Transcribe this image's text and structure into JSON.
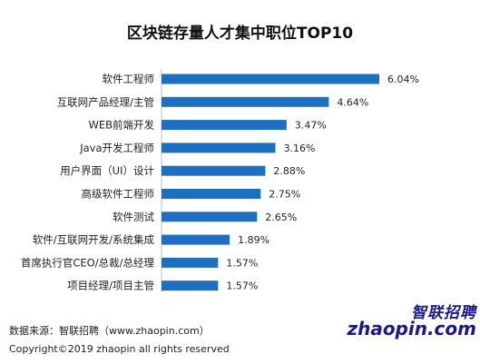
{
  "chart_data": {
    "type": "bar",
    "orientation": "horizontal",
    "title": "区块链存量人才集中职位TOP10",
    "categories": [
      "软件工程师",
      "互联网产品经理/主管",
      "WEB前端开发",
      "Java开发工程师",
      "用户界面（UI）设计",
      "高级软件工程师",
      "软件测试",
      "软件/互联网开发/系统集成",
      "首席执行官CEO/总裁/总经理",
      "项目经理/项目主管"
    ],
    "values": [
      6.04,
      4.64,
      3.47,
      3.16,
      2.88,
      2.75,
      2.65,
      1.89,
      1.57,
      1.57
    ],
    "value_labels": [
      "6.04%",
      "4.64%",
      "3.47%",
      "3.16%",
      "2.88%",
      "2.75%",
      "2.65%",
      "1.89%",
      "1.57%",
      "1.57%"
    ],
    "xlim": [
      0,
      6.04
    ],
    "bar_color": "#1f6fc0",
    "grid": false
  },
  "footer": {
    "source": "数据来源：智联招聘（www.zhaopin.com）",
    "copyright": "Copyright©2019 zhaopin all rights reserved"
  },
  "logo": {
    "chinese": "智联招聘",
    "english": "zhaopin.com",
    "color": "#1a1a8c"
  }
}
